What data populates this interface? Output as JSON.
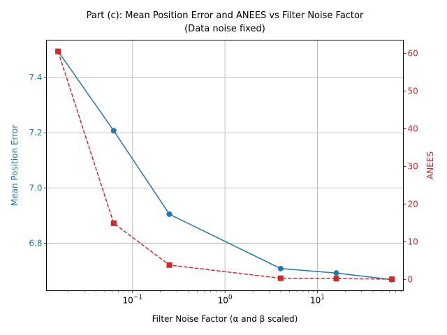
{
  "chart_data": {
    "type": "line",
    "title_lines": [
      "Part (c): Mean Position Error and ANEES vs Filter Noise Factor",
      "(Data noise fixed)"
    ],
    "xlabel": "Filter Noise Factor (α and β scaled)",
    "ylabel_left": "Mean Position Error",
    "ylabel_right": "ANEES",
    "x_scale": "log",
    "xlim": [
      0.0117,
      85.0
    ],
    "x_ticks": [
      {
        "value": 0.1,
        "base": "10",
        "exp": "−1"
      },
      {
        "value": 1,
        "base": "10",
        "exp": "0"
      },
      {
        "value": 10,
        "base": "10",
        "exp": "1"
      }
    ],
    "x": [
      0.015625,
      0.0625,
      0.25,
      4,
      16,
      64
    ],
    "grid": true,
    "series": [
      {
        "axis": "left",
        "color": "#1f77b4",
        "linestyle": "solid",
        "marker": "circle",
        "values": [
          7.495,
          7.207,
          6.905,
          6.708,
          6.692,
          6.668
        ]
      },
      {
        "axis": "right",
        "color": "#d62728",
        "linestyle": "dashed",
        "marker": "square",
        "values": [
          60.5,
          14.9,
          3.8,
          0.3,
          0.2,
          0.05
        ]
      }
    ],
    "ylim_left": [
      6.628,
      7.535
    ],
    "ylim_right": [
      -3.0,
      63.5
    ],
    "left_ticks": [
      "6.8",
      "7.0",
      "7.2",
      "7.4"
    ],
    "right_ticks": [
      "0",
      "10",
      "20",
      "30",
      "40",
      "50",
      "60"
    ],
    "left_axis_color": "#1f77b4",
    "right_axis_color": "#d62728"
  }
}
